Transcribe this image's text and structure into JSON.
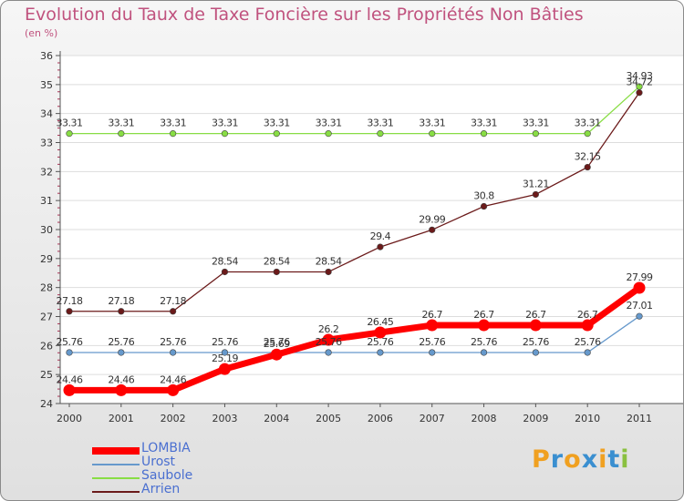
{
  "title": "Evolution du Taux de Taxe Foncière sur les Propriétés Non Bâties",
  "subtitle": "(en %)",
  "logo": {
    "text": "Proxiti",
    "letters": [
      "P",
      "r",
      "o",
      "x",
      "i",
      "t",
      "i"
    ],
    "colors": [
      "#f0a020",
      "#3a8fd0",
      "#f0a020",
      "#3a8fd0",
      "#f0a020",
      "#3a8fd0",
      "#8ac040"
    ]
  },
  "chart_data": {
    "type": "line",
    "title": "Evolution du Taux de Taxe Foncière sur les Propriétés Non Bâties",
    "ylabel": "(en %)",
    "x": [
      "2000",
      "2001",
      "2002",
      "2003",
      "2004",
      "2005",
      "2006",
      "2007",
      "2008",
      "2009",
      "2010",
      "2011"
    ],
    "ylim": [
      24,
      36
    ],
    "yticks": [
      24,
      25,
      26,
      27,
      28,
      29,
      30,
      31,
      32,
      33,
      34,
      35,
      36
    ],
    "grid": "horizontal",
    "legend_position": "bottom-left",
    "series": [
      {
        "name": "LOMBIA",
        "color": "#ff0000",
        "values": [
          24.46,
          24.46,
          24.46,
          25.19,
          25.69,
          26.2,
          26.45,
          26.7,
          26.7,
          26.7,
          26.7,
          27.99
        ],
        "labels": [
          "24.46",
          "24.46",
          "24.46",
          "25.19",
          "25.69",
          "26.2",
          "26.45",
          "26.7",
          "26.7",
          "26.7",
          "26.7",
          "27.99"
        ]
      },
      {
        "name": "Urost",
        "color": "#6699cc",
        "values": [
          25.76,
          25.76,
          25.76,
          25.76,
          25.76,
          25.76,
          25.76,
          25.76,
          25.76,
          25.76,
          25.76,
          27.01
        ],
        "labels": [
          "25.76",
          "25.76",
          "25.76",
          "25.76",
          "25.76",
          "25.76",
          "25.76",
          "25.76",
          "25.76",
          "25.76",
          "25.76",
          "27.01"
        ]
      },
      {
        "name": "Saubole",
        "color": "#88dd44",
        "values": [
          33.31,
          33.31,
          33.31,
          33.31,
          33.31,
          33.31,
          33.31,
          33.31,
          33.31,
          33.31,
          33.31,
          34.93
        ],
        "labels": [
          "33.31",
          "33.31",
          "33.31",
          "33.31",
          "33.31",
          "33.31",
          "33.31",
          "33.31",
          "33.31",
          "33.31",
          "33.31",
          "34.93"
        ]
      },
      {
        "name": "Arrien",
        "color": "#6b1a1a",
        "values": [
          27.18,
          27.18,
          27.18,
          28.54,
          28.54,
          28.54,
          29.4,
          29.99,
          30.8,
          31.21,
          32.15,
          34.72
        ],
        "labels": [
          "27.18",
          "27.18",
          "27.18",
          "28.54",
          "28.54",
          "28.54",
          "29.4",
          "29.99",
          "30.8",
          "31.21",
          "32.15",
          "34.72"
        ]
      }
    ]
  }
}
